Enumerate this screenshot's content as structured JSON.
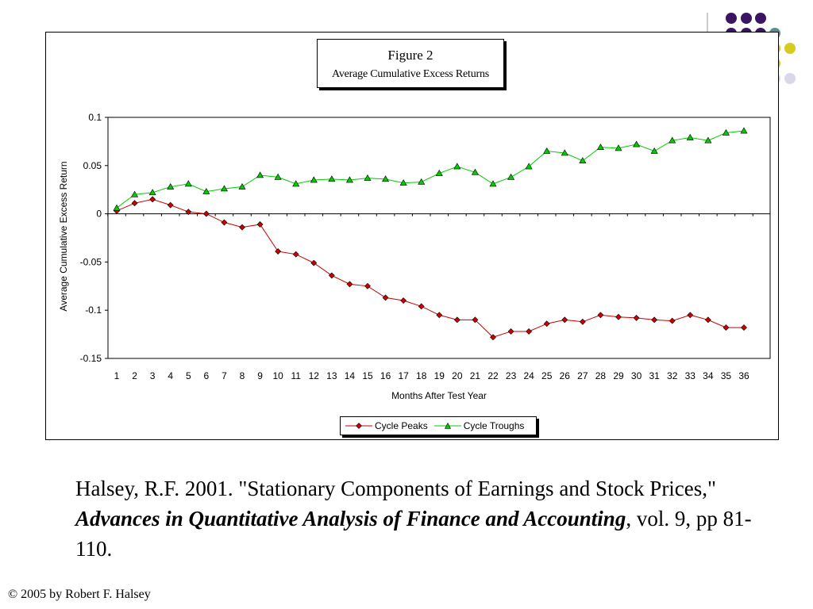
{
  "slide": {
    "citation": {
      "authors_year": "Halsey, R.F. 2001.",
      "article_title": "\"Stationary Components of Earnings and Stock Prices,\"",
      "journal": "Advances in Quantitative Analysis of Finance and Accounting",
      "details": ", vol. 9, pp 81-110."
    },
    "footer": "© 2005 by Robert F. Halsey",
    "decor_colors": {
      "purple": "#3b1462",
      "teal": "#5a8f8f",
      "yellow": "#d4cc1e",
      "lavender": "#d8d8ea",
      "line": "#9a9a9a"
    }
  },
  "chart_data": {
    "type": "line",
    "title": "Figure 2",
    "subtitle": "Average Cumulative Excess Returns",
    "xlabel": "Months After Test Year",
    "ylabel": "Average Cumulative Excess Return",
    "categories": [
      1,
      2,
      3,
      4,
      5,
      6,
      7,
      8,
      9,
      10,
      11,
      12,
      13,
      14,
      15,
      16,
      17,
      18,
      19,
      20,
      21,
      22,
      23,
      24,
      25,
      26,
      27,
      28,
      29,
      30,
      31,
      32,
      33,
      34,
      35,
      36
    ],
    "ylim": [
      -0.15,
      0.1
    ],
    "yticks": [
      "0.1",
      "0.05",
      "0",
      "-0.05",
      "-0.1",
      "-0.15"
    ],
    "ytick_values": [
      0.1,
      0.05,
      0,
      -0.05,
      -0.1,
      -0.15
    ],
    "grid": false,
    "legend_position": "bottom",
    "series": [
      {
        "name": "Cycle Peaks",
        "color": "#cc0000",
        "marker": "diamond",
        "values": [
          0.003,
          0.011,
          0.015,
          0.009,
          0.002,
          0.0,
          -0.009,
          -0.014,
          -0.011,
          -0.039,
          -0.042,
          -0.051,
          -0.064,
          -0.073,
          -0.075,
          -0.087,
          -0.09,
          -0.096,
          -0.105,
          -0.11,
          -0.11,
          -0.128,
          -0.122,
          -0.122,
          -0.114,
          -0.11,
          -0.112,
          -0.105,
          -0.107,
          -0.108,
          -0.11,
          -0.111,
          -0.105,
          -0.11,
          -0.118,
          -0.118
        ]
      },
      {
        "name": "Cycle Troughs",
        "color": "#00cc00",
        "marker": "triangle",
        "values": [
          0.006,
          0.02,
          0.022,
          0.028,
          0.031,
          0.023,
          0.026,
          0.028,
          0.04,
          0.038,
          0.031,
          0.035,
          0.036,
          0.035,
          0.037,
          0.036,
          0.032,
          0.033,
          0.042,
          0.049,
          0.043,
          0.031,
          0.038,
          0.049,
          0.065,
          0.063,
          0.055,
          0.069,
          0.068,
          0.072,
          0.065,
          0.076,
          0.079,
          0.076,
          0.084,
          0.086
        ]
      }
    ]
  }
}
